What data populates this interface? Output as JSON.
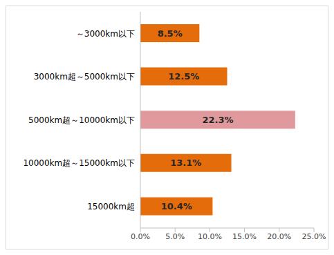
{
  "chart_data": {
    "type": "bar",
    "orientation": "horizontal",
    "categories": [
      "～3000km以下",
      "3000km超～5000km以下",
      "5000km超～10000km以下",
      "10000km超～15000km以下",
      "15000km超"
    ],
    "values": [
      8.5,
      12.5,
      22.3,
      13.1,
      10.4
    ],
    "value_labels": [
      "8.5%",
      "12.5%",
      "22.3%",
      "13.1%",
      "10.4%"
    ],
    "colors": [
      "#e46c0a",
      "#e46c0a",
      "#e0999c",
      "#e46c0a",
      "#e46c0a"
    ],
    "xlim": [
      0,
      25
    ],
    "xticks": [
      {
        "value": 0,
        "label": "0.0%"
      },
      {
        "value": 5,
        "label": "5.0%"
      },
      {
        "value": 10,
        "label": "10.0%"
      },
      {
        "value": 15,
        "label": "15.0%"
      },
      {
        "value": 20,
        "label": "20.0%"
      },
      {
        "value": 25,
        "label": "25.0%"
      }
    ],
    "grid": false,
    "data_labels": true
  }
}
